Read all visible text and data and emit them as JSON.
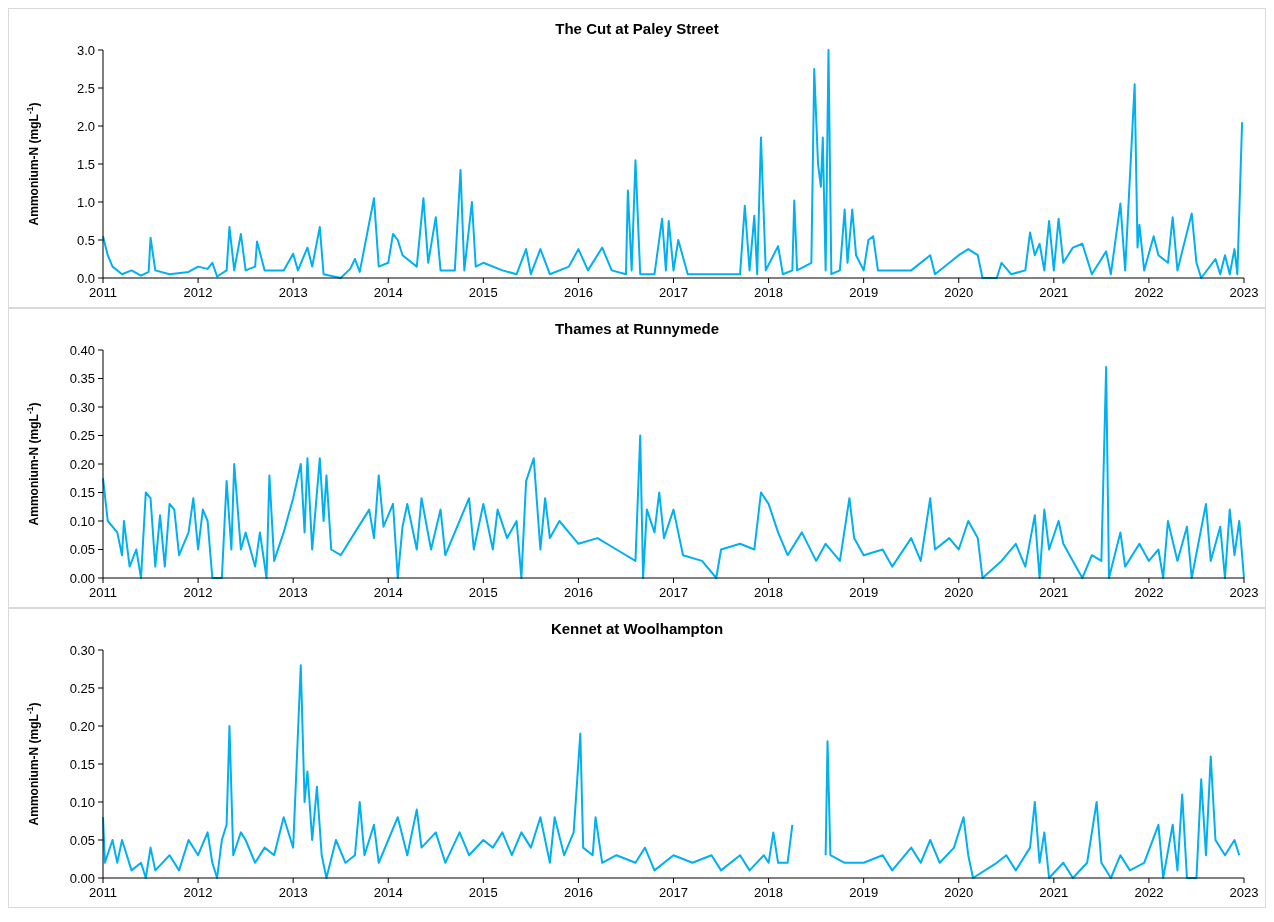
{
  "chart_data": [
    {
      "type": "line",
      "title": "The Cut at Paley Street",
      "ylabel": "Ammonium-N (mgL$^{-1}$)",
      "xlim": [
        2011,
        2023
      ],
      "xticks": [
        2011,
        2012,
        2013,
        2014,
        2015,
        2016,
        2017,
        2018,
        2019,
        2020,
        2021,
        2022,
        2023
      ],
      "ylim": [
        0,
        3
      ],
      "yticks": [
        {
          "value": 0,
          "label": "0.0"
        },
        0.5,
        {
          "value": 1,
          "label": "1.0"
        },
        1.5,
        {
          "value": 2,
          "label": "2.0"
        },
        2.5,
        {
          "value": 3,
          "label": "3.0"
        }
      ],
      "grid": false,
      "series": [
        {
          "color": "#00b0f0",
          "x": [
            2011.0,
            2011.05,
            2011.1,
            2011.2,
            2011.3,
            2011.4,
            2011.48,
            2011.5,
            2011.55,
            2011.7,
            2011.9,
            2012.0,
            2012.1,
            2012.15,
            2012.2,
            2012.3,
            2012.33,
            2012.38,
            2012.45,
            2012.5,
            2012.6,
            2012.62,
            2012.7,
            2012.9,
            2013.0,
            2013.05,
            2013.15,
            2013.2,
            2013.28,
            2013.32,
            2013.5,
            2013.6,
            2013.65,
            2013.7,
            2013.85,
            2013.9,
            2014.0,
            2014.05,
            2014.1,
            2014.15,
            2014.3,
            2014.37,
            2014.42,
            2014.5,
            2014.55,
            2014.7,
            2014.76,
            2014.8,
            2014.88,
            2014.92,
            2015.0,
            2015.2,
            2015.35,
            2015.45,
            2015.5,
            2015.6,
            2015.7,
            2015.9,
            2016.0,
            2016.1,
            2016.25,
            2016.35,
            2016.5,
            2016.52,
            2016.56,
            2016.6,
            2016.65,
            2016.8,
            2016.88,
            2016.92,
            2016.95,
            2017.0,
            2017.05,
            2017.15,
            2017.5,
            2017.7,
            2017.75,
            2017.8,
            2017.85,
            2017.88,
            2017.92,
            2017.97,
            2018.1,
            2018.15,
            2018.25,
            2018.27,
            2018.3,
            2018.45,
            2018.48,
            2018.52,
            2018.55,
            2018.57,
            2018.6,
            2018.63,
            2018.66,
            2018.75,
            2018.8,
            2018.83,
            2018.88,
            2018.92,
            2019.0,
            2019.05,
            2019.1,
            2019.15,
            2019.5,
            2019.7,
            2019.75,
            2020.0,
            2020.1,
            2020.2,
            2020.25,
            2020.4,
            2020.45,
            2020.55,
            2020.7,
            2020.75,
            2020.8,
            2020.85,
            2020.9,
            2020.95,
            2021.0,
            2021.05,
            2021.1,
            2021.2,
            2021.3,
            2021.4,
            2021.55,
            2021.6,
            2021.7,
            2021.75,
            2021.85,
            2021.88,
            2021.9,
            2021.95,
            2022.05,
            2022.1,
            2022.2,
            2022.25,
            2022.3,
            2022.45,
            2022.5,
            2022.55,
            2022.7,
            2022.75,
            2022.8,
            2022.85,
            2022.9,
            2022.93,
            2022.98
          ],
          "values": [
            0.55,
            0.3,
            0.15,
            0.05,
            0.1,
            0.03,
            0.08,
            0.53,
            0.1,
            0.05,
            0.08,
            0.15,
            0.12,
            0.2,
            0.02,
            0.1,
            0.67,
            0.1,
            0.58,
            0.1,
            0.15,
            0.48,
            0.1,
            0.1,
            0.32,
            0.1,
            0.4,
            0.15,
            0.67,
            0.05,
            0.0,
            0.12,
            0.25,
            0.08,
            1.05,
            0.15,
            0.2,
            0.58,
            0.5,
            0.3,
            0.15,
            1.05,
            0.2,
            0.8,
            0.1,
            0.1,
            1.42,
            0.1,
            1.0,
            0.15,
            0.2,
            0.1,
            0.05,
            0.38,
            0.05,
            0.38,
            0.05,
            0.15,
            0.38,
            0.1,
            0.4,
            0.1,
            0.05,
            1.15,
            0.1,
            1.55,
            0.05,
            0.05,
            0.78,
            0.1,
            0.75,
            0.1,
            0.5,
            0.05,
            0.05,
            0.05,
            0.95,
            0.1,
            0.82,
            0.05,
            1.85,
            0.1,
            0.42,
            0.05,
            0.1,
            1.02,
            0.1,
            0.2,
            2.75,
            1.5,
            1.2,
            1.85,
            0.1,
            3.0,
            0.05,
            0.1,
            0.9,
            0.2,
            0.9,
            0.3,
            0.1,
            0.5,
            0.55,
            0.1,
            0.1,
            0.3,
            0.05,
            0.3,
            0.38,
            0.3,
            0.0,
            0.0,
            0.2,
            0.05,
            0.1,
            0.6,
            0.3,
            0.45,
            0.1,
            0.75,
            0.1,
            0.78,
            0.2,
            0.4,
            0.45,
            0.05,
            0.35,
            0.05,
            0.98,
            0.1,
            2.55,
            0.4,
            0.7,
            0.1,
            0.55,
            0.3,
            0.2,
            0.8,
            0.1,
            0.85,
            0.2,
            0.0,
            0.25,
            0.05,
            0.3,
            0.05,
            0.38,
            0.05,
            2.05
          ]
        }
      ]
    },
    {
      "type": "line",
      "title": "Thames at Runnymede",
      "ylabel": "Ammonium-N (mgL$^{-1}$)",
      "xlim": [
        2011,
        2023
      ],
      "xticks": [
        2011,
        2012,
        2013,
        2014,
        2015,
        2016,
        2017,
        2018,
        2019,
        2020,
        2021,
        2022,
        2023
      ],
      "ylim": [
        0,
        0.4
      ],
      "yticks": [
        {
          "value": 0,
          "label": "0.00"
        },
        {
          "value": 0.05,
          "label": "0.05"
        },
        {
          "value": 0.1,
          "label": "0.10"
        },
        {
          "value": 0.15,
          "label": "0.15"
        },
        {
          "value": 0.2,
          "label": "0.20"
        },
        {
          "value": 0.25,
          "label": "0.25"
        },
        {
          "value": 0.3,
          "label": "0.30"
        },
        {
          "value": 0.35,
          "label": "0.35"
        },
        {
          "value": 0.4,
          "label": "0.40"
        }
      ],
      "grid": false,
      "series": [
        {
          "color": "#00b0f0",
          "x": [
            2011.0,
            2011.05,
            2011.15,
            2011.2,
            2011.22,
            2011.28,
            2011.35,
            2011.4,
            2011.45,
            2011.5,
            2011.55,
            2011.6,
            2011.65,
            2011.7,
            2011.75,
            2011.8,
            2011.9,
            2011.95,
            2012.0,
            2012.05,
            2012.1,
            2012.15,
            2012.25,
            2012.3,
            2012.35,
            2012.38,
            2012.45,
            2012.5,
            2012.6,
            2012.65,
            2012.72,
            2012.75,
            2012.8,
            2012.9,
            2013.0,
            2013.08,
            2013.12,
            2013.15,
            2013.2,
            2013.28,
            2013.32,
            2013.35,
            2013.4,
            2013.5,
            2013.65,
            2013.8,
            2013.85,
            2013.9,
            2013.95,
            2014.05,
            2014.1,
            2014.15,
            2014.2,
            2014.3,
            2014.35,
            2014.45,
            2014.55,
            2014.6,
            2014.75,
            2014.85,
            2014.9,
            2015.0,
            2015.1,
            2015.15,
            2015.25,
            2015.35,
            2015.4,
            2015.45,
            2015.53,
            2015.6,
            2015.65,
            2015.7,
            2015.8,
            2016.0,
            2016.2,
            2016.4,
            2016.6,
            2016.65,
            2016.68,
            2016.72,
            2016.8,
            2016.85,
            2016.9,
            2017.0,
            2017.1,
            2017.3,
            2017.45,
            2017.5,
            2017.7,
            2017.85,
            2017.92,
            2018.0,
            2018.1,
            2018.2,
            2018.35,
            2018.5,
            2018.6,
            2018.75,
            2018.85,
            2018.9,
            2019.0,
            2019.2,
            2019.3,
            2019.5,
            2019.6,
            2019.7,
            2019.75,
            2019.9,
            2020.0,
            2020.1,
            2020.2,
            2020.25,
            2020.45,
            2020.6,
            2020.7,
            2020.8,
            2020.85,
            2020.9,
            2020.95,
            2021.05,
            2021.1,
            2021.2,
            2021.3,
            2021.4,
            2021.5,
            2021.55,
            2021.58,
            2021.7,
            2021.75,
            2021.9,
            2022.0,
            2022.1,
            2022.15,
            2022.2,
            2022.3,
            2022.4,
            2022.45,
            2022.6,
            2022.65,
            2022.75,
            2022.8,
            2022.85,
            2022.9,
            2022.95,
            2023.0
          ],
          "values": [
            0.175,
            0.1,
            0.08,
            0.04,
            0.1,
            0.02,
            0.05,
            0.0,
            0.15,
            0.14,
            0.02,
            0.11,
            0.02,
            0.13,
            0.12,
            0.04,
            0.08,
            0.14,
            0.05,
            0.12,
            0.1,
            0.0,
            0.0,
            0.17,
            0.05,
            0.2,
            0.05,
            0.08,
            0.02,
            0.08,
            0.0,
            0.18,
            0.03,
            0.08,
            0.14,
            0.2,
            0.08,
            0.21,
            0.05,
            0.21,
            0.1,
            0.18,
            0.05,
            0.04,
            0.08,
            0.12,
            0.07,
            0.18,
            0.09,
            0.13,
            0.0,
            0.09,
            0.13,
            0.05,
            0.14,
            0.05,
            0.12,
            0.04,
            0.1,
            0.14,
            0.05,
            0.13,
            0.05,
            0.12,
            0.07,
            0.1,
            0.0,
            0.17,
            0.21,
            0.05,
            0.14,
            0.07,
            0.1,
            0.06,
            0.07,
            0.05,
            0.03,
            0.25,
            0.0,
            0.12,
            0.08,
            0.15,
            0.07,
            0.12,
            0.04,
            0.03,
            0.0,
            0.05,
            0.06,
            0.05,
            0.15,
            0.13,
            0.08,
            0.04,
            0.08,
            0.03,
            0.06,
            0.03,
            0.14,
            0.07,
            0.04,
            0.05,
            0.02,
            0.07,
            0.03,
            0.14,
            0.05,
            0.07,
            0.05,
            0.1,
            0.07,
            0.0,
            0.03,
            0.06,
            0.02,
            0.11,
            0.0,
            0.12,
            0.05,
            0.1,
            0.06,
            0.03,
            0.0,
            0.04,
            0.03,
            0.37,
            0.0,
            0.08,
            0.02,
            0.06,
            0.03,
            0.05,
            0.0,
            0.1,
            0.03,
            0.09,
            0.0,
            0.13,
            0.03,
            0.09,
            0.0,
            0.12,
            0.04,
            0.1,
            0.0
          ]
        }
      ]
    },
    {
      "type": "line",
      "title": "Kennet at Woolhampton",
      "ylabel": "Ammonium-N (mgL$^{-1}$)",
      "xlim": [
        2011,
        2023
      ],
      "xticks": [
        2011,
        2012,
        2013,
        2014,
        2015,
        2016,
        2017,
        2018,
        2019,
        2020,
        2021,
        2022,
        2023
      ],
      "ylim": [
        0,
        0.3
      ],
      "yticks": [
        {
          "value": 0,
          "label": "0.00"
        },
        {
          "value": 0.05,
          "label": "0.05"
        },
        {
          "value": 0.1,
          "label": "0.10"
        },
        {
          "value": 0.15,
          "label": "0.15"
        },
        {
          "value": 0.2,
          "label": "0.20"
        },
        {
          "value": 0.25,
          "label": "0.25"
        },
        {
          "value": 0.3,
          "label": "0.30"
        }
      ],
      "grid": false,
      "series": [
        {
          "color": "#00b0f0",
          "x": [
            2011.0,
            2011.02,
            2011.1,
            2011.15,
            2011.2,
            2011.3,
            2011.4,
            2011.45,
            2011.5,
            2011.55,
            2011.7,
            2011.8,
            2011.9,
            2012.0,
            2012.1,
            2012.15,
            2012.2,
            2012.25,
            2012.3,
            2012.33,
            2012.37,
            2012.45,
            2012.5,
            2012.6,
            2012.7,
            2012.8,
            2012.9,
            2013.0,
            2013.08,
            2013.12,
            2013.15,
            2013.2,
            2013.25,
            2013.3,
            2013.35,
            2013.45,
            2013.55,
            2013.65,
            2013.7,
            2013.75,
            2013.85,
            2013.9,
            2014.0,
            2014.1,
            2014.2,
            2014.3,
            2014.35,
            2014.5,
            2014.6,
            2014.75,
            2014.85,
            2015.0,
            2015.1,
            2015.2,
            2015.3,
            2015.4,
            2015.5,
            2015.6,
            2015.7,
            2015.75,
            2015.85,
            2015.95,
            2016.02,
            2016.05,
            2016.15,
            2016.18,
            2016.25,
            2016.4,
            2016.6,
            2016.7,
            2016.8,
            2017.0,
            2017.2,
            2017.4,
            2017.5,
            2017.7,
            2017.8,
            2017.95,
            2018.0,
            2018.05,
            2018.1,
            2018.2,
            2018.25,
            2018.4,
            2018.6,
            2018.62,
            2018.65,
            2018.8,
            2019.0,
            2019.2,
            2019.3,
            2019.5,
            2019.6,
            2019.7,
            2019.8,
            2019.95,
            2020.05,
            2020.1,
            2020.15,
            2020.4,
            2020.5,
            2020.6,
            2020.75,
            2020.8,
            2020.85,
            2020.9,
            2020.95,
            2021.1,
            2021.2,
            2021.35,
            2021.45,
            2021.5,
            2021.6,
            2021.7,
            2021.8,
            2021.95,
            2022.1,
            2022.15,
            2022.25,
            2022.3,
            2022.35,
            2022.4,
            2022.5,
            2022.55,
            2022.6,
            2022.65,
            2022.7,
            2022.8,
            2022.9,
            2022.95
          ],
          "values": [
            0.08,
            0.02,
            0.05,
            0.02,
            0.05,
            0.01,
            0.02,
            0.0,
            0.04,
            0.01,
            0.03,
            0.01,
            0.05,
            0.03,
            0.06,
            0.02,
            0.0,
            0.05,
            0.07,
            0.2,
            0.03,
            0.06,
            0.05,
            0.02,
            0.04,
            0.03,
            0.08,
            0.04,
            0.28,
            0.1,
            0.14,
            0.05,
            0.12,
            0.03,
            0.0,
            0.05,
            0.02,
            0.03,
            0.1,
            0.03,
            0.07,
            0.02,
            0.05,
            0.08,
            0.03,
            0.09,
            0.04,
            0.06,
            0.02,
            0.06,
            0.03,
            0.05,
            0.04,
            0.06,
            0.03,
            0.06,
            0.04,
            0.08,
            0.02,
            0.08,
            0.03,
            0.06,
            0.19,
            0.04,
            0.03,
            0.08,
            0.02,
            0.03,
            0.02,
            0.04,
            0.01,
            0.03,
            0.02,
            0.03,
            0.01,
            0.03,
            0.01,
            0.03,
            0.02,
            0.06,
            0.02,
            0.02,
            0.07,
            null,
            0.03,
            0.18,
            0.03,
            0.02,
            0.02,
            0.03,
            0.01,
            0.04,
            0.02,
            0.05,
            0.02,
            0.04,
            0.08,
            0.03,
            0.0,
            0.02,
            0.03,
            0.01,
            0.04,
            0.1,
            0.02,
            0.06,
            0.0,
            0.02,
            0.0,
            0.02,
            0.1,
            0.02,
            0.0,
            0.03,
            0.01,
            0.02,
            0.07,
            0.0,
            0.07,
            0.01,
            0.11,
            0.0,
            0.0,
            0.13,
            0.03,
            0.16,
            0.05,
            0.03,
            0.05,
            0.03
          ]
        }
      ]
    }
  ]
}
